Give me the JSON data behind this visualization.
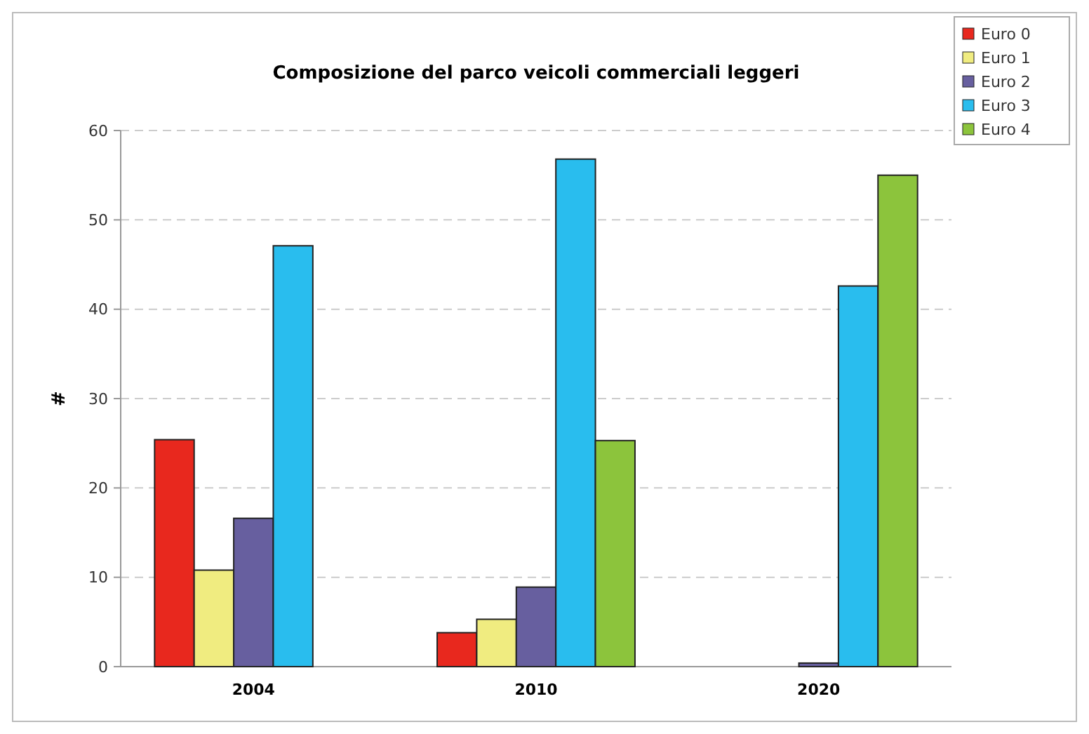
{
  "chart_data": {
    "type": "bar",
    "title": "Composizione del parco veicoli commerciali leggeri",
    "ylabel": "#",
    "categories": [
      "2004",
      "2010",
      "2020"
    ],
    "series": [
      {
        "name": "Euro 0",
        "color": "#e8281e",
        "values": [
          25.4,
          3.8,
          0
        ]
      },
      {
        "name": "Euro 1",
        "color": "#f0ec80",
        "values": [
          10.8,
          5.3,
          0
        ]
      },
      {
        "name": "Euro 2",
        "color": "#675f9f",
        "values": [
          16.6,
          8.9,
          0.4
        ]
      },
      {
        "name": "Euro 3",
        "color": "#29bdee",
        "values": [
          47.1,
          56.8,
          42.6
        ]
      },
      {
        "name": "Euro 4",
        "color": "#8cc43c",
        "values": [
          0,
          25.3,
          55
        ]
      }
    ],
    "ylim": [
      0,
      60
    ],
    "yticks": [
      0,
      10,
      20,
      30,
      40,
      50,
      60
    ],
    "grid": "y",
    "legend": "top right"
  }
}
